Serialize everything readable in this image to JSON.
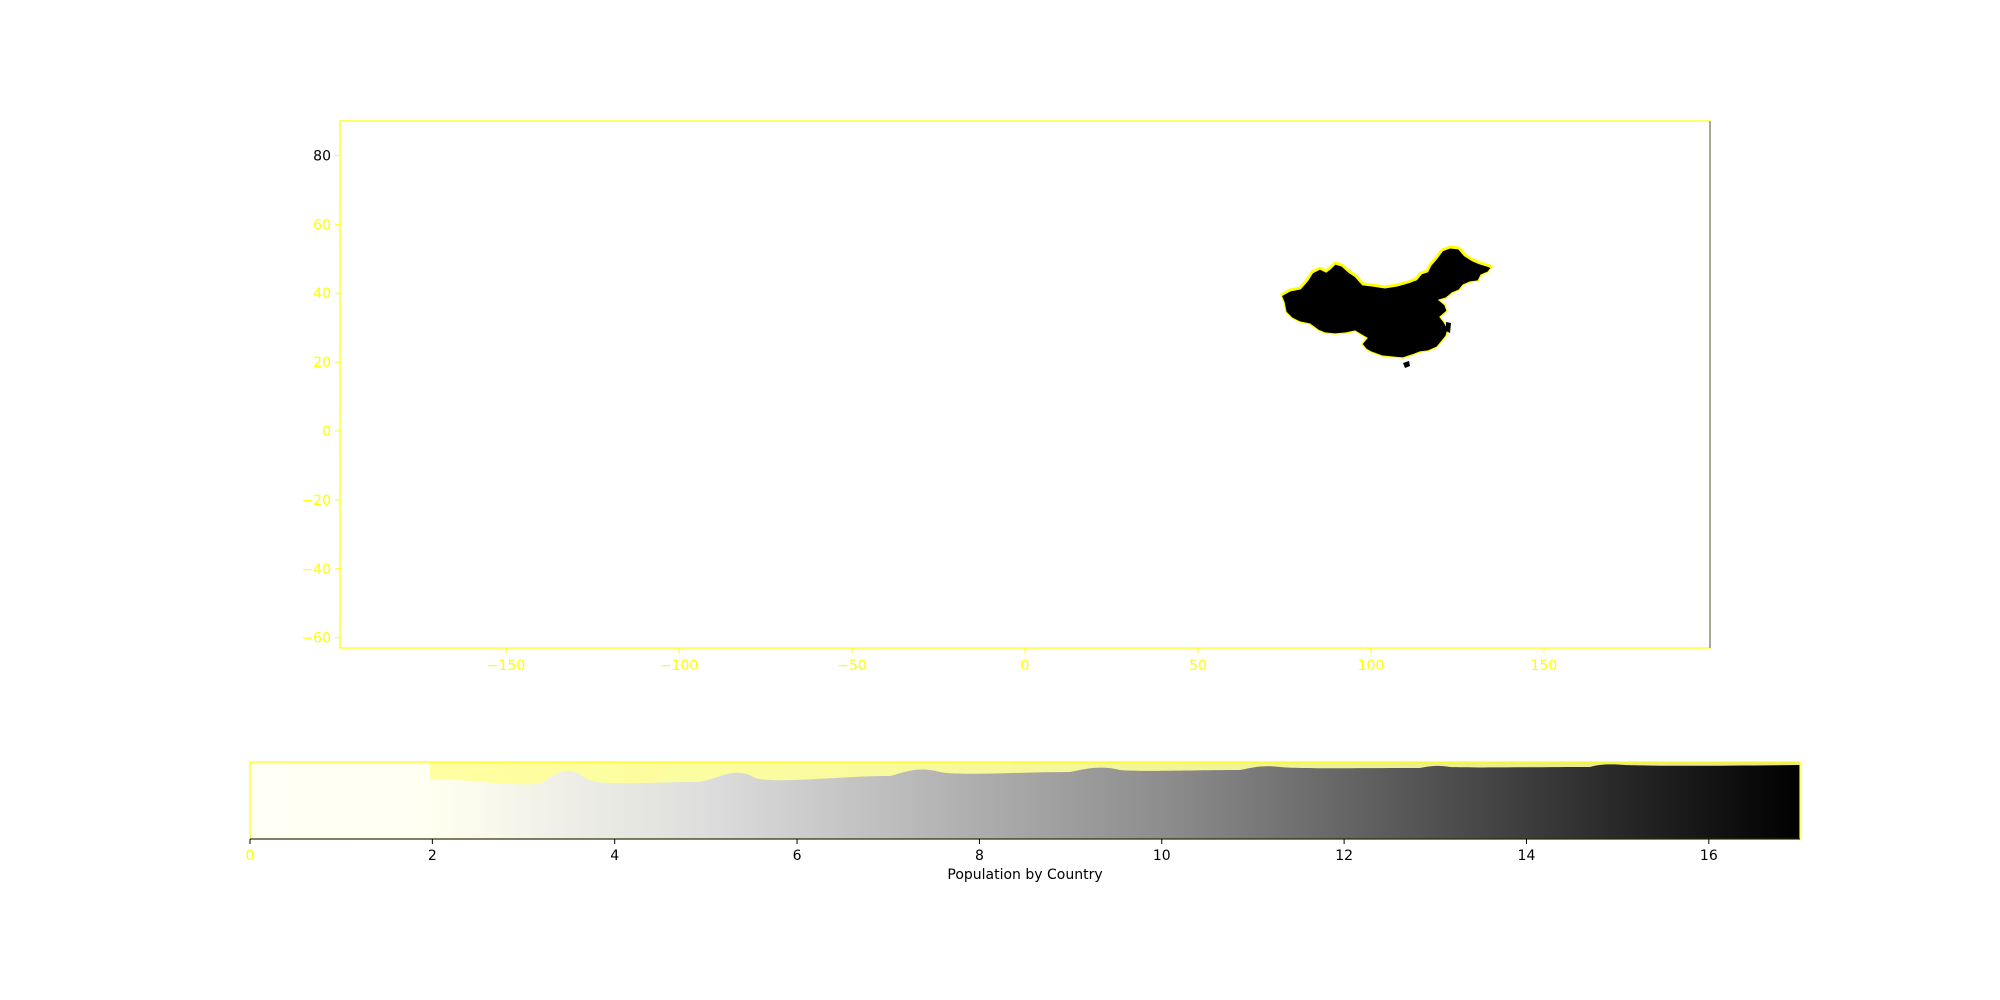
{
  "map": {
    "x_ticks": [
      -150,
      -100,
      -50,
      0,
      50,
      100,
      150
    ],
    "y_ticks": [
      80,
      60,
      40,
      20,
      0,
      -20,
      -40,
      -60
    ],
    "x_range": [
      -198,
      198
    ],
    "y_range": [
      -63,
      90
    ],
    "frame_color": "#ffff00",
    "tick_label_color": "#ffff00",
    "highlighted_country": {
      "fill": "#000000",
      "outline": "#ffff00"
    }
  },
  "colorbar": {
    "label": "Population by Country",
    "ticks": [
      0,
      2,
      4,
      6,
      8,
      10,
      12,
      14,
      16
    ],
    "range": [
      0,
      17
    ],
    "colormap": [
      "#ffffff",
      "#ffffe8",
      "#bdbdbd",
      "#000000"
    ],
    "frame_color": "#ffff00"
  },
  "colors": {
    "accent_yellow": "#ffff00",
    "land": "#000000",
    "background": "#ffffff"
  }
}
